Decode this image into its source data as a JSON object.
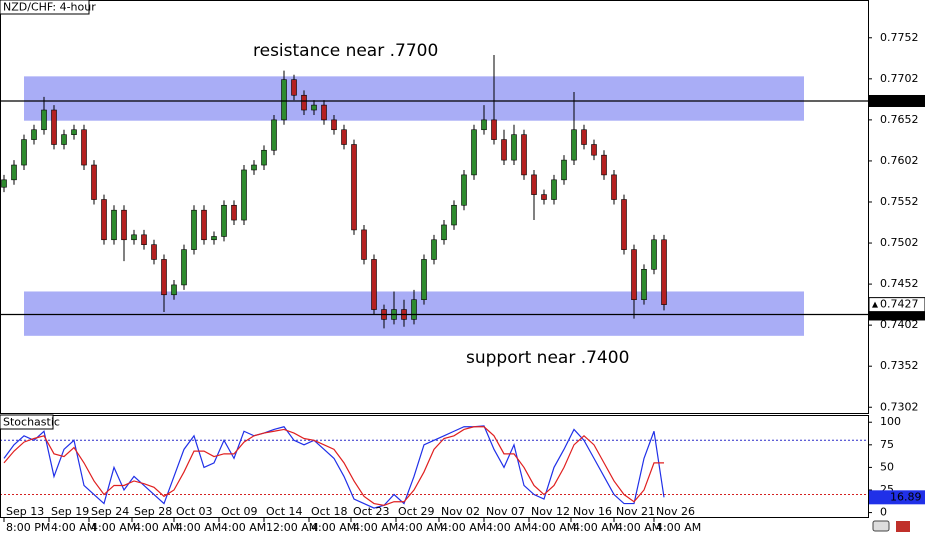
{
  "chart_data": [
    {
      "type": "candlestick",
      "title": "NZD/CHF: 4-hour",
      "annotations": [
        "resistance near .7700",
        "support near .7400"
      ],
      "xlim": [
        -0.4,
        86.4
      ],
      "xticks": [
        {
          "value": 0,
          "label": "Sep 13",
          "sublabel": "8:00 PM"
        },
        {
          "value": 4.5,
          "label": "Sep 19",
          "sublabel": "4:00 AM"
        },
        {
          "value": 8.5,
          "label": "Sep 24",
          "sublabel": "4:00 AM"
        },
        {
          "value": 12.8,
          "label": "Sep 28",
          "sublabel": "4:00 AM"
        },
        {
          "value": 17,
          "label": "Oct 03",
          "sublabel": "4:00 AM"
        },
        {
          "value": 21.5,
          "label": "Oct 09",
          "sublabel": "4:00 AM"
        },
        {
          "value": 26,
          "label": "Oct 14",
          "sublabel": "12:00 AM"
        },
        {
          "value": 30.5,
          "label": "Oct 18",
          "sublabel": "4:00 AM"
        },
        {
          "value": 34.7,
          "label": "Oct 23",
          "sublabel": "4:00 AM"
        },
        {
          "value": 39.2,
          "label": "Oct 29",
          "sublabel": "4:00 AM"
        },
        {
          "value": 43.5,
          "label": "Nov 02",
          "sublabel": "4:00 AM"
        },
        {
          "value": 48,
          "label": "Nov 07",
          "sublabel": "4:00 AM"
        },
        {
          "value": 52.5,
          "label": "Nov 12",
          "sublabel": "4:00 AM"
        },
        {
          "value": 56.7,
          "label": "Nov 16",
          "sublabel": "4:00 AM"
        },
        {
          "value": 61,
          "label": "Nov 21",
          "sublabel": "4:00 AM"
        },
        {
          "value": 65,
          "label": "Nov 26",
          "sublabel": "4:00 AM"
        }
      ],
      "ylim": [
        0.7295,
        0.7798
      ],
      "yticks": [
        0.7302,
        0.7352,
        0.7402,
        0.7452,
        0.7502,
        0.7552,
        0.7602,
        0.7652,
        0.7702,
        0.7752
      ],
      "grid": false,
      "up_color": "#2e8b2e",
      "down_color": "#b52020",
      "zones": [
        {
          "from": 0.7651,
          "to": 0.7705,
          "x": [
            2,
            80
          ]
        },
        {
          "from": 0.7389,
          "to": 0.7443,
          "x": [
            2,
            80
          ]
        }
      ],
      "zone_color": "#a9adf6",
      "hlines": [
        0.7675,
        0.7415
      ],
      "series": {
        "open": [
          0.757,
          0.7579,
          0.7597,
          0.7628,
          0.764,
          0.7664,
          0.7622,
          0.7634,
          0.764,
          0.7597,
          0.7555,
          0.7506,
          0.7542,
          0.7506,
          0.7512,
          0.75,
          0.7482,
          0.7439,
          0.7451,
          0.7494,
          0.7542,
          0.7506,
          0.751,
          0.7548,
          0.753,
          0.7591,
          0.7597,
          0.7615,
          0.7652,
          0.7701,
          0.7682,
          0.7664,
          0.767,
          0.7652,
          0.764,
          0.7622,
          0.7518,
          0.7482,
          0.7421,
          0.7409,
          0.7421,
          0.7409,
          0.7433,
          0.7482,
          0.7506,
          0.7524,
          0.7548,
          0.7585,
          0.764,
          0.7652,
          0.7628,
          0.7603,
          0.7634,
          0.7585,
          0.7561,
          0.7555,
          0.7579,
          0.7603,
          0.764,
          0.7622,
          0.7609,
          0.7585,
          0.7555,
          0.7494,
          0.7433,
          0.747,
          0.7506
        ],
        "high": [
          0.7585,
          0.7603,
          0.7634,
          0.7646,
          0.768,
          0.767,
          0.764,
          0.7646,
          0.7646,
          0.7603,
          0.7561,
          0.7548,
          0.7548,
          0.7518,
          0.7518,
          0.7506,
          0.7488,
          0.7457,
          0.75,
          0.7548,
          0.7548,
          0.7516,
          0.7554,
          0.7554,
          0.7597,
          0.7603,
          0.7621,
          0.7658,
          0.7712,
          0.7707,
          0.7688,
          0.7676,
          0.7676,
          0.7658,
          0.7646,
          0.7628,
          0.7524,
          0.7488,
          0.7427,
          0.7443,
          0.7433,
          0.7445,
          0.7488,
          0.7512,
          0.753,
          0.7554,
          0.7591,
          0.7646,
          0.767,
          0.7731,
          0.764,
          0.7646,
          0.764,
          0.7591,
          0.7567,
          0.7585,
          0.7609,
          0.7686,
          0.7646,
          0.7628,
          0.7615,
          0.7591,
          0.7561,
          0.75,
          0.7476,
          0.7512,
          0.7512
        ],
        "low": [
          0.7564,
          0.7573,
          0.7591,
          0.7622,
          0.7634,
          0.7616,
          0.7616,
          0.7628,
          0.7591,
          0.7549,
          0.75,
          0.75,
          0.748,
          0.75,
          0.7494,
          0.7476,
          0.7418,
          0.7433,
          0.7445,
          0.7488,
          0.75,
          0.75,
          0.7504,
          0.7524,
          0.7524,
          0.7585,
          0.7591,
          0.7609,
          0.7646,
          0.7676,
          0.7658,
          0.7658,
          0.7646,
          0.7634,
          0.7616,
          0.7512,
          0.7476,
          0.7415,
          0.7398,
          0.7403,
          0.74,
          0.7403,
          0.7427,
          0.7476,
          0.75,
          0.7518,
          0.7542,
          0.7579,
          0.7634,
          0.7622,
          0.7597,
          0.7597,
          0.7579,
          0.753,
          0.7549,
          0.7549,
          0.7573,
          0.7597,
          0.7616,
          0.7603,
          0.7579,
          0.7549,
          0.7488,
          0.741,
          0.7427,
          0.7464,
          0.742
        ],
        "close": [
          0.7579,
          0.7597,
          0.7628,
          0.764,
          0.7664,
          0.7622,
          0.7634,
          0.764,
          0.7597,
          0.7555,
          0.7506,
          0.7542,
          0.7506,
          0.7512,
          0.75,
          0.7482,
          0.7439,
          0.7451,
          0.7494,
          0.7542,
          0.7506,
          0.751,
          0.7548,
          0.753,
          0.7591,
          0.7597,
          0.7615,
          0.7652,
          0.7701,
          0.7682,
          0.7664,
          0.767,
          0.7652,
          0.764,
          0.7622,
          0.7518,
          0.7482,
          0.7421,
          0.7409,
          0.7421,
          0.7409,
          0.7433,
          0.7482,
          0.7506,
          0.7524,
          0.7548,
          0.7585,
          0.764,
          0.7652,
          0.7628,
          0.7603,
          0.7634,
          0.7585,
          0.7561,
          0.7555,
          0.7579,
          0.7603,
          0.764,
          0.7622,
          0.7609,
          0.7585,
          0.7555,
          0.7494,
          0.7433,
          0.747,
          0.7506,
          0.7427
        ]
      }
    },
    {
      "type": "line",
      "title": "Stochastic",
      "xlim": [
        -0.4,
        86.4
      ],
      "ylim": [
        -6,
        108
      ],
      "yticks": [
        0,
        25,
        50,
        75,
        100
      ],
      "levels": [
        {
          "value": 80,
          "color": "#2c2cc8"
        },
        {
          "value": 20,
          "color": "#d42020"
        }
      ],
      "series": [
        {
          "color": "#2030e8",
          "values": [
            60,
            75,
            85,
            80,
            90,
            40,
            70,
            80,
            30,
            20,
            10,
            50,
            25,
            40,
            30,
            20,
            10,
            40,
            70,
            85,
            50,
            55,
            80,
            60,
            90,
            85,
            88,
            92,
            95,
            80,
            75,
            80,
            70,
            60,
            40,
            15,
            10,
            5,
            8,
            20,
            10,
            40,
            75,
            80,
            85,
            90,
            95,
            95,
            96,
            70,
            50,
            75,
            30,
            20,
            15,
            50,
            70,
            92,
            80,
            60,
            40,
            20,
            10,
            10,
            60,
            90,
            16.89
          ]
        },
        {
          "color": "#e02020",
          "values": [
            55,
            68,
            78,
            82,
            85,
            65,
            62,
            72,
            55,
            35,
            20,
            30,
            30,
            35,
            32,
            28,
            18,
            25,
            45,
            68,
            68,
            62,
            65,
            65,
            78,
            85,
            88,
            90,
            92,
            88,
            82,
            80,
            75,
            70,
            55,
            35,
            18,
            10,
            8,
            12,
            12,
            25,
            45,
            70,
            82,
            85,
            92,
            95,
            95,
            85,
            65,
            65,
            50,
            30,
            20,
            30,
            50,
            75,
            85,
            75,
            55,
            35,
            20,
            12,
            25,
            55,
            55
          ]
        }
      ]
    }
  ]
}
